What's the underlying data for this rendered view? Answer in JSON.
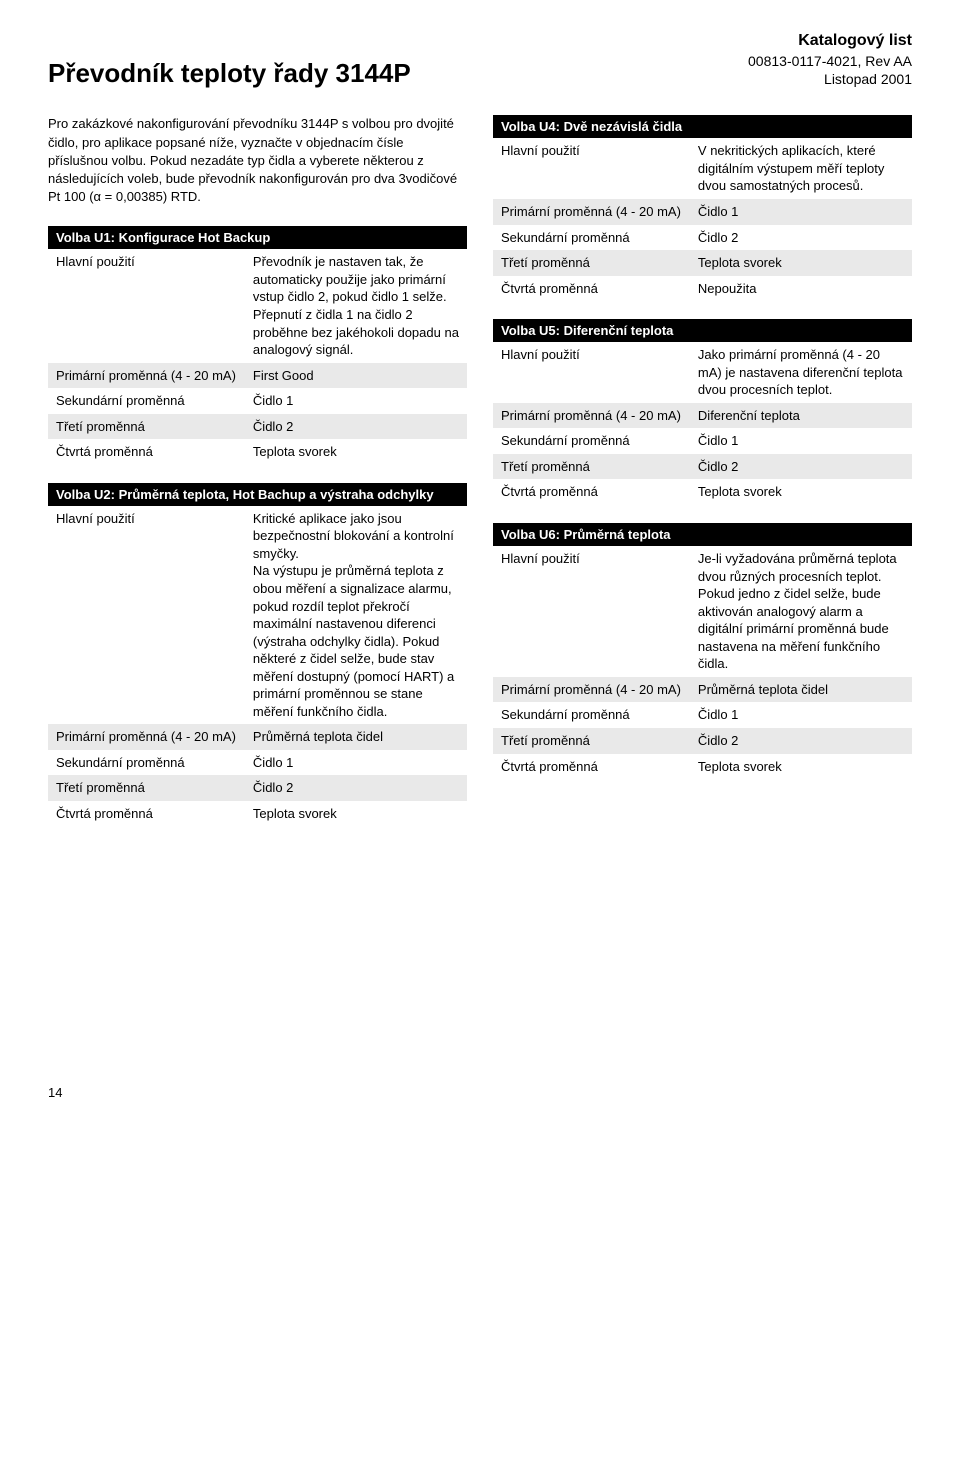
{
  "header": {
    "title": "Převodník teploty řady 3144P",
    "catalog": "Katalogový list",
    "doc_code": "00813-0117-4021, Rev AA",
    "date": "Listopad 2001"
  },
  "intro": "Pro zakázkové nakonfigurování převodníku 3144P s volbou pro dvojité čidlo, pro aplikace popsané níže, vyznačte v objednacím čísle příslušnou volbu. Pokud nezadáte typ čidla a vyberete některou z následujících voleb, bude převodník nakonfigurován pro dva 3vodičové Pt 100 (α = 0,00385) RTD.",
  "row_labels": {
    "main_use": "Hlavní použití",
    "primary": "Primární proměnná (4 - 20 mA)",
    "secondary": "Sekundární proměnná",
    "third": "Třetí proměnná",
    "fourth": "Čtvrtá proměnná"
  },
  "u1": {
    "title": "Volba U1: Konfigurace Hot Backup",
    "main_use": "Převodník je nastaven tak, že automaticky použije jako primární vstup čidlo 2, pokud čidlo 1 selže. Přepnutí z čidla 1 na čidlo 2 proběhne bez jakéhokoli dopadu na analogový signál.",
    "primary": "First Good",
    "secondary": "Čidlo 1",
    "third": "Čidlo 2",
    "fourth": "Teplota svorek"
  },
  "u2": {
    "title": "Volba U2: Průměrná teplota, Hot Bachup a výstraha odchylky",
    "main_use": "Kritické aplikace jako jsou bezpečnostní blokování a kontrolní smyčky.\nNa výstupu je průměrná teplota z obou měření a signalizace alarmu, pokud rozdíl teplot překročí maximální nastavenou diferenci (výstraha odchylky čidla). Pokud některé z čidel selže, bude stav měření dostupný (pomocí HART) a primární proměnnou se stane měření funkčního čidla.",
    "primary": "Průměrná teplota čidel",
    "secondary": "Čidlo 1",
    "third": "Čidlo 2",
    "fourth": "Teplota svorek"
  },
  "u4": {
    "title": "Volba U4: Dvě nezávislá čidla",
    "main_use": "V nekritických aplikacích, které digitálním výstupem měří teploty dvou samostatných procesů.",
    "primary": "Čidlo 1",
    "secondary": "Čidlo 2",
    "third": "Teplota svorek",
    "fourth": "Nepoužita"
  },
  "u5": {
    "title": "Volba U5: Diferenční teplota",
    "main_use": "Jako primární proměnná (4 - 20 mA) je nastavena diferenční teplota dvou procesních teplot.",
    "primary": "Diferenční teplota",
    "secondary": "Čidlo 1",
    "third": "Čidlo 2",
    "fourth": "Teplota svorek"
  },
  "u6": {
    "title": "Volba U6: Průměrná teplota",
    "main_use": "Je-li vyžadována průměrná teplota dvou různých procesních teplot.\nPokud jedno z čidel selže, bude aktivován analogový alarm a digitální primární proměnná bude nastavena na měření funkčního čidla.",
    "primary": "Průměrná teplota čidel",
    "secondary": "Čidlo 1",
    "third": "Čidlo 2",
    "fourth": "Teplota svorek"
  },
  "page_number": "14"
}
